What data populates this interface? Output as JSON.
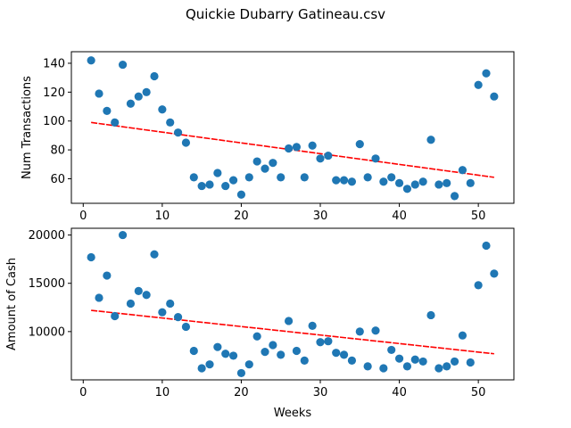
{
  "figure": {
    "suptitle": "Quickie Dubarry Gatineau.csv"
  },
  "chart_data": [
    {
      "type": "scatter",
      "title": "",
      "xlabel": "",
      "ylabel": "Num Transactions",
      "xlim": [
        -1.5,
        54.5
      ],
      "ylim": [
        43,
        148
      ],
      "xticks": [
        0,
        10,
        20,
        30,
        40,
        50
      ],
      "yticks": [
        60,
        80,
        100,
        120,
        140
      ],
      "grid": false,
      "marker_color": "#1f77b4",
      "trend_color": "#ff0000",
      "trend": {
        "x": [
          1,
          52
        ],
        "y": [
          99,
          61
        ]
      },
      "x": [
        1,
        2,
        3,
        4,
        5,
        6,
        7,
        8,
        9,
        10,
        11,
        12,
        13,
        14,
        15,
        16,
        17,
        18,
        19,
        20,
        21,
        22,
        23,
        24,
        25,
        26,
        27,
        28,
        29,
        30,
        31,
        32,
        33,
        34,
        35,
        36,
        37,
        38,
        39,
        40,
        41,
        42,
        43,
        44,
        45,
        46,
        47,
        48,
        49,
        50,
        51,
        52
      ],
      "y": [
        142,
        119,
        107,
        99,
        139,
        112,
        117,
        120,
        131,
        108,
        99,
        92,
        85,
        61,
        55,
        56,
        64,
        55,
        59,
        49,
        61,
        72,
        67,
        71,
        61,
        81,
        82,
        61,
        83,
        74,
        76,
        59,
        59,
        58,
        84,
        61,
        74,
        58,
        61,
        57,
        53,
        56,
        58,
        87,
        56,
        57,
        48,
        66,
        57,
        125,
        133,
        117
      ]
    },
    {
      "type": "scatter",
      "title": "",
      "xlabel": "Weeks",
      "ylabel": "Amount of Cash",
      "xlim": [
        -1.5,
        54.5
      ],
      "ylim": [
        5000,
        20700
      ],
      "xticks": [
        0,
        10,
        20,
        30,
        40,
        50
      ],
      "yticks": [
        10000,
        15000,
        20000
      ],
      "grid": false,
      "marker_color": "#1f77b4",
      "trend_color": "#ff0000",
      "trend": {
        "x": [
          1,
          52
        ],
        "y": [
          12200,
          7700
        ]
      },
      "x": [
        1,
        2,
        3,
        4,
        5,
        6,
        7,
        8,
        9,
        10,
        11,
        12,
        13,
        14,
        15,
        16,
        17,
        18,
        19,
        20,
        21,
        22,
        23,
        24,
        25,
        26,
        27,
        28,
        29,
        30,
        31,
        32,
        33,
        34,
        35,
        36,
        37,
        38,
        39,
        40,
        41,
        42,
        43,
        44,
        45,
        46,
        47,
        48,
        49,
        50,
        51,
        52
      ],
      "y": [
        17700,
        13500,
        15800,
        11600,
        20000,
        12900,
        14200,
        13800,
        18000,
        12000,
        12900,
        11500,
        10500,
        8000,
        6200,
        6600,
        8400,
        7700,
        7500,
        5700,
        6600,
        9500,
        7900,
        8600,
        7600,
        11100,
        8000,
        7000,
        10600,
        8900,
        9000,
        7800,
        7600,
        7000,
        10000,
        6400,
        10100,
        6200,
        8100,
        7200,
        6400,
        7100,
        6900,
        11700,
        6200,
        6400,
        6900,
        9600,
        6800,
        14800,
        18900,
        16000
      ]
    }
  ]
}
